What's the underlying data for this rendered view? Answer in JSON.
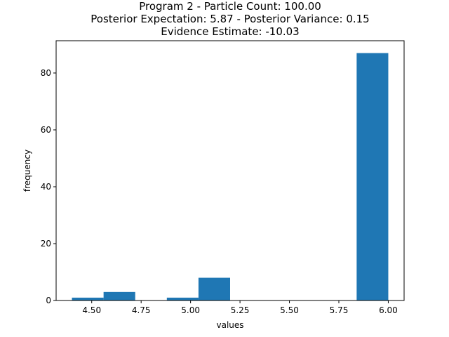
{
  "chart_data": {
    "type": "bar",
    "title_lines": [
      "Program 2 - Particle Count: 100.00",
      "Posterior Expectation: 5.87 - Posterior Variance: 0.15",
      "Evidence Estimate: -10.03"
    ],
    "xlabel": "values",
    "ylabel": "frequency",
    "xlim": [
      4.32,
      6.08
    ],
    "ylim": [
      0,
      91.35
    ],
    "x_ticks": [
      4.5,
      4.75,
      5.0,
      5.25,
      5.5,
      5.75,
      6.0
    ],
    "x_tick_labels": [
      "4.50",
      "4.75",
      "5.00",
      "5.25",
      "5.50",
      "5.75",
      "6.00"
    ],
    "y_ticks": [
      0,
      20,
      40,
      60,
      80
    ],
    "y_tick_labels": [
      "0",
      "20",
      "40",
      "60",
      "80"
    ],
    "bins": [
      {
        "start": 4.4,
        "end": 4.56,
        "count": 1
      },
      {
        "start": 4.56,
        "end": 4.72,
        "count": 3
      },
      {
        "start": 4.72,
        "end": 4.88,
        "count": 0
      },
      {
        "start": 4.88,
        "end": 5.04,
        "count": 1
      },
      {
        "start": 5.04,
        "end": 5.2,
        "count": 8
      },
      {
        "start": 5.2,
        "end": 5.36,
        "count": 0
      },
      {
        "start": 5.36,
        "end": 5.52,
        "count": 0
      },
      {
        "start": 5.52,
        "end": 5.68,
        "count": 0
      },
      {
        "start": 5.68,
        "end": 5.84,
        "count": 0
      },
      {
        "start": 5.84,
        "end": 6.0,
        "count": 87
      }
    ],
    "bar_color": "#1f77b4",
    "grid": false,
    "legend": "none"
  }
}
